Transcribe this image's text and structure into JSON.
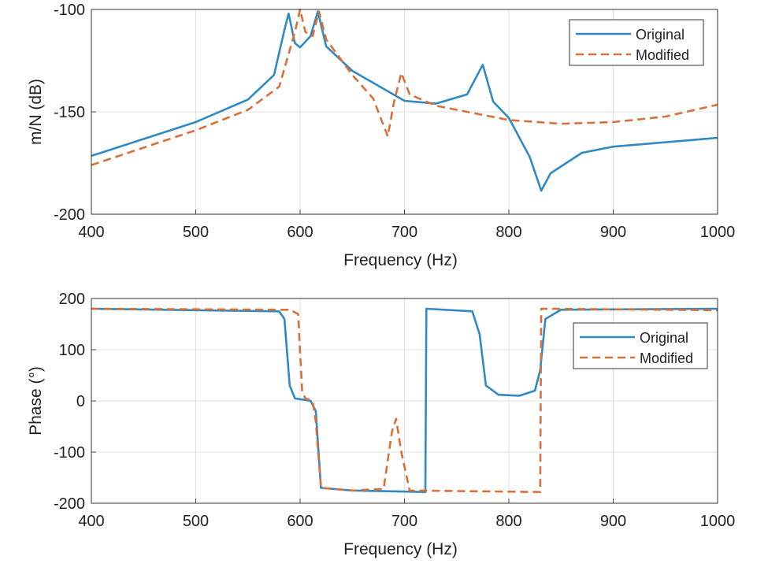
{
  "colors": {
    "original": "#2f8ac4",
    "modified": "#d9703a"
  },
  "chart_data": [
    {
      "type": "line",
      "xlabel": "Frequency (Hz)",
      "ylabel": "m/N (dB)",
      "xlim": [
        400,
        1000
      ],
      "ylim": [
        -200,
        -100
      ],
      "xticks": [
        "400",
        "500",
        "600",
        "700",
        "800",
        "900",
        "1000"
      ],
      "yticks": [
        "-100",
        "-150",
        "-200"
      ],
      "grid": true,
      "legend_position": "top-right",
      "series": [
        {
          "name": "Original",
          "style": "solid",
          "x": [
            400,
            500,
            550,
            575,
            585,
            589,
            595,
            600,
            610,
            617,
            625,
            650,
            700,
            730,
            760,
            775,
            785,
            800,
            820,
            831,
            840,
            870,
            900,
            1000
          ],
          "y": [
            -171.5,
            -155,
            -144,
            -132,
            -110,
            -102,
            -116.5,
            -118.5,
            -113,
            -101,
            -118,
            -130,
            -144.6,
            -146,
            -141.5,
            -127,
            -145,
            -153,
            -172,
            -188.5,
            -180,
            -170,
            -167,
            -162.7
          ]
        },
        {
          "name": "Modified",
          "style": "dashed",
          "x": [
            400,
            500,
            550,
            580,
            595,
            600,
            605,
            612,
            618,
            625,
            650,
            670,
            684,
            690,
            697,
            705,
            730,
            800,
            850,
            900,
            950,
            1000
          ],
          "y": [
            -176,
            -159,
            -149,
            -137.7,
            -111,
            -100,
            -111,
            -113,
            -101,
            -114.6,
            -132,
            -143.5,
            -162,
            -145,
            -131,
            -141.5,
            -147,
            -154,
            -155.8,
            -155,
            -152.3,
            -146.5
          ]
        }
      ]
    },
    {
      "type": "line",
      "xlabel": "Frequency (Hz)",
      "ylabel": "Phase (°)",
      "xlim": [
        400,
        1000
      ],
      "ylim": [
        -200,
        200
      ],
      "xticks": [
        "400",
        "500",
        "600",
        "700",
        "800",
        "900",
        "1000"
      ],
      "yticks": [
        "200",
        "100",
        "0",
        "-100",
        "-200"
      ],
      "grid": true,
      "legend_position": "top-right",
      "series": [
        {
          "name": "Original",
          "style": "solid",
          "x": [
            400,
            580,
            585,
            590,
            595,
            610,
            615,
            620,
            650,
            720,
            721,
            765,
            772,
            778,
            790,
            810,
            825,
            830,
            835,
            850,
            1000
          ],
          "y": [
            180,
            175,
            160,
            30,
            5,
            0,
            -20,
            -170,
            -175,
            -178,
            180,
            175,
            130,
            30,
            12,
            10,
            20,
            60,
            160,
            178,
            180
          ]
        },
        {
          "name": "Modified",
          "style": "dashed",
          "x": [
            400,
            590,
            598,
            602,
            605,
            612,
            615,
            620,
            650,
            680,
            688,
            692,
            697,
            705,
            830,
            831,
            1000
          ],
          "y": [
            180,
            178,
            170,
            20,
            5,
            0,
            -40,
            -170,
            -175,
            -172,
            -60,
            -35,
            -100,
            -175,
            -178,
            180,
            177
          ]
        }
      ]
    }
  ]
}
